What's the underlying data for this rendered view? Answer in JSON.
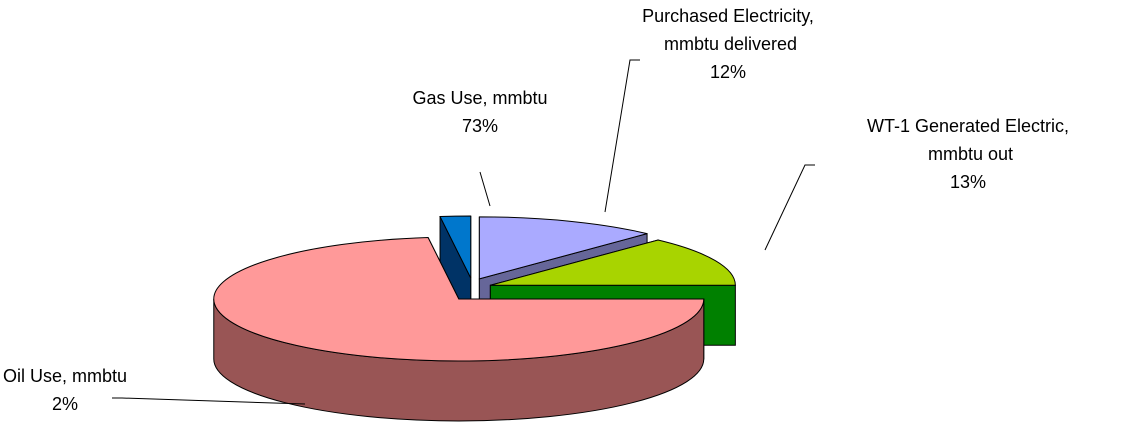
{
  "chart_data": {
    "type": "pie",
    "categories": [
      "Purchased Electricity, mmbtu delivered",
      "WT-1 Generated Electric, mmbtu out",
      "Gas Use, mmbtu",
      "Oil Use, mmbtu"
    ],
    "values": [
      12,
      13,
      73,
      2
    ],
    "value_labels": [
      "12%",
      "13%",
      "73%",
      "2%"
    ],
    "colors": [
      "#aaaaff",
      "#a8d400",
      "#ff9999",
      "#0077cc"
    ],
    "side_colors": [
      "#666699",
      "#008000",
      "#995555",
      "#003366"
    ],
    "exploded": true,
    "three_d": true
  }
}
